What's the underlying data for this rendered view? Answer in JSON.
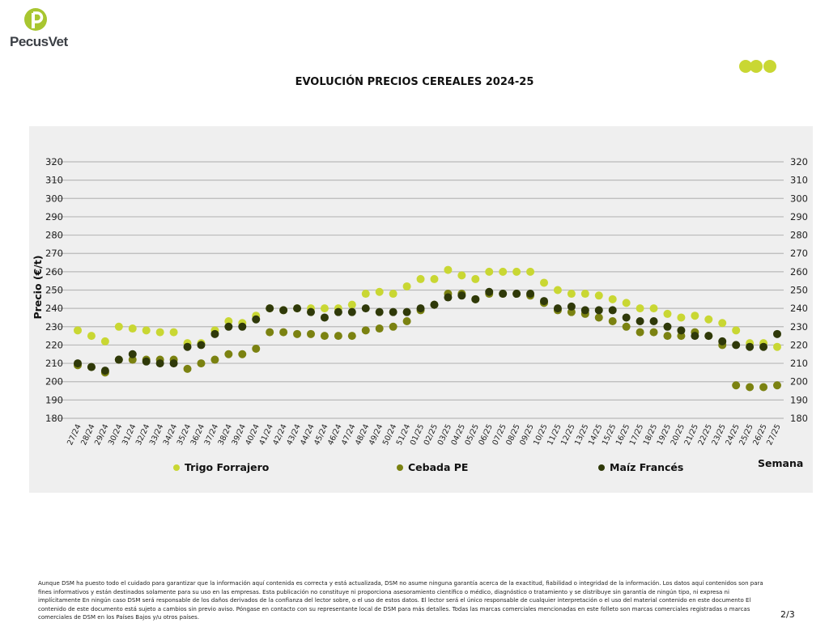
{
  "brand": {
    "name": "PecusVet",
    "logo_letter": "P"
  },
  "colors": {
    "trigo": "#c9d733",
    "cebada": "#7b8211",
    "maiz": "#2f3909",
    "brand_green": "#a8c630",
    "dots": "#c9d733"
  },
  "chart_data": {
    "type": "scatter",
    "title": "EVOLUCIÓN PRECIOS CEREALES 2024-25",
    "xlabel": "Semana",
    "ylabel": "Precio (€/t)",
    "ylim": [
      180,
      320
    ],
    "yticks": [
      180,
      190,
      200,
      210,
      220,
      230,
      240,
      250,
      260,
      270,
      280,
      290,
      300,
      310,
      320
    ],
    "grid": true,
    "legend_placement": "bottom",
    "categories": [
      "27/24",
      "28/24",
      "29/24",
      "30/24",
      "31/24",
      "32/24",
      "33/24",
      "34/24",
      "35/24",
      "36/24",
      "37/24",
      "38/24",
      "39/24",
      "40/24",
      "41/24",
      "42/24",
      "43/24",
      "44/24",
      "45/24",
      "46/24",
      "47/24",
      "48/24",
      "49/24",
      "50/24",
      "51/24",
      "01/25",
      "02/25",
      "03/25",
      "04/25",
      "05/25",
      "06/25",
      "07/25",
      "08/25",
      "09/25",
      "10/25",
      "11/25",
      "12/25",
      "13/25",
      "14/25",
      "15/25",
      "16/25",
      "17/25",
      "18/25",
      "19/25",
      "20/25",
      "21/25",
      "22/25",
      "23/25",
      "24/25",
      "25/25",
      "26/25",
      "27/25"
    ],
    "series": [
      {
        "name": "Trigo Forrajero",
        "color": "#c9d733",
        "values": [
          228,
          225,
          222,
          230,
          229,
          228,
          227,
          227,
          221,
          221,
          228,
          233,
          232,
          236,
          240,
          239,
          240,
          240,
          240,
          240,
          242,
          248,
          249,
          248,
          252,
          256,
          256,
          261,
          258,
          256,
          260,
          260,
          260,
          260,
          254,
          250,
          248,
          248,
          247,
          245,
          243,
          240,
          240,
          237,
          235,
          236,
          234,
          232,
          228,
          221,
          221,
          219
        ]
      },
      {
        "name": "Cebada PE",
        "color": "#7b8211",
        "values": [
          209,
          208,
          205,
          212,
          212,
          212,
          212,
          212,
          207,
          210,
          212,
          215,
          215,
          218,
          227,
          227,
          226,
          226,
          225,
          225,
          225,
          228,
          229,
          230,
          233,
          239,
          242,
          248,
          248,
          245,
          248,
          248,
          248,
          247,
          243,
          239,
          238,
          237,
          235,
          233,
          230,
          227,
          227,
          225,
          225,
          227,
          225,
          220,
          198,
          197,
          197,
          198
        ]
      },
      {
        "name": "Maíz Francés",
        "color": "#2f3909",
        "values": [
          210,
          208,
          206,
          212,
          215,
          211,
          210,
          210,
          219,
          220,
          226,
          230,
          230,
          234,
          240,
          239,
          240,
          238,
          235,
          238,
          238,
          240,
          238,
          238,
          238,
          240,
          242,
          246,
          247,
          245,
          249,
          248,
          248,
          248,
          244,
          240,
          241,
          239,
          239,
          239,
          235,
          233,
          233,
          230,
          228,
          225,
          225,
          222,
          220,
          219,
          219,
          226
        ]
      }
    ]
  },
  "disclaimer_lines": [
    "Aunque DSM ha puesto todo el cuidado para garantizar que la información aquí contenida es correcta y está actualizada, DSM no asume ninguna garantía acerca de la exactitud, fiabilidad o integridad de la información. Los datos aquí contenidos son para",
    "fines informativos y están destinados solamente para su uso en las empresas. Esta publicación no constituye ni proporciona asesoramiento científico o médico, diagnóstico o tratamiento y se distribuye sin garantía de ningún tipo, ni expresa ni",
    "implícitamente En ningún caso DSM será responsable de los daños derivados de la confianza del lector sobre, o el uso de estos datos. El lector será el único responsable de cualquier interpretación o el uso del material contenido en este documento El",
    "contenido de este documento está sujeto a cambios sin previo aviso. Póngase en contacto con su representante local de DSM para más detalles. Todas las marcas comerciales mencionadas en este folleto son marcas comerciales registradas o marcas",
    "comerciales de DSM en los Países Bajos y/u otros países."
  ],
  "page_number": "2/3"
}
